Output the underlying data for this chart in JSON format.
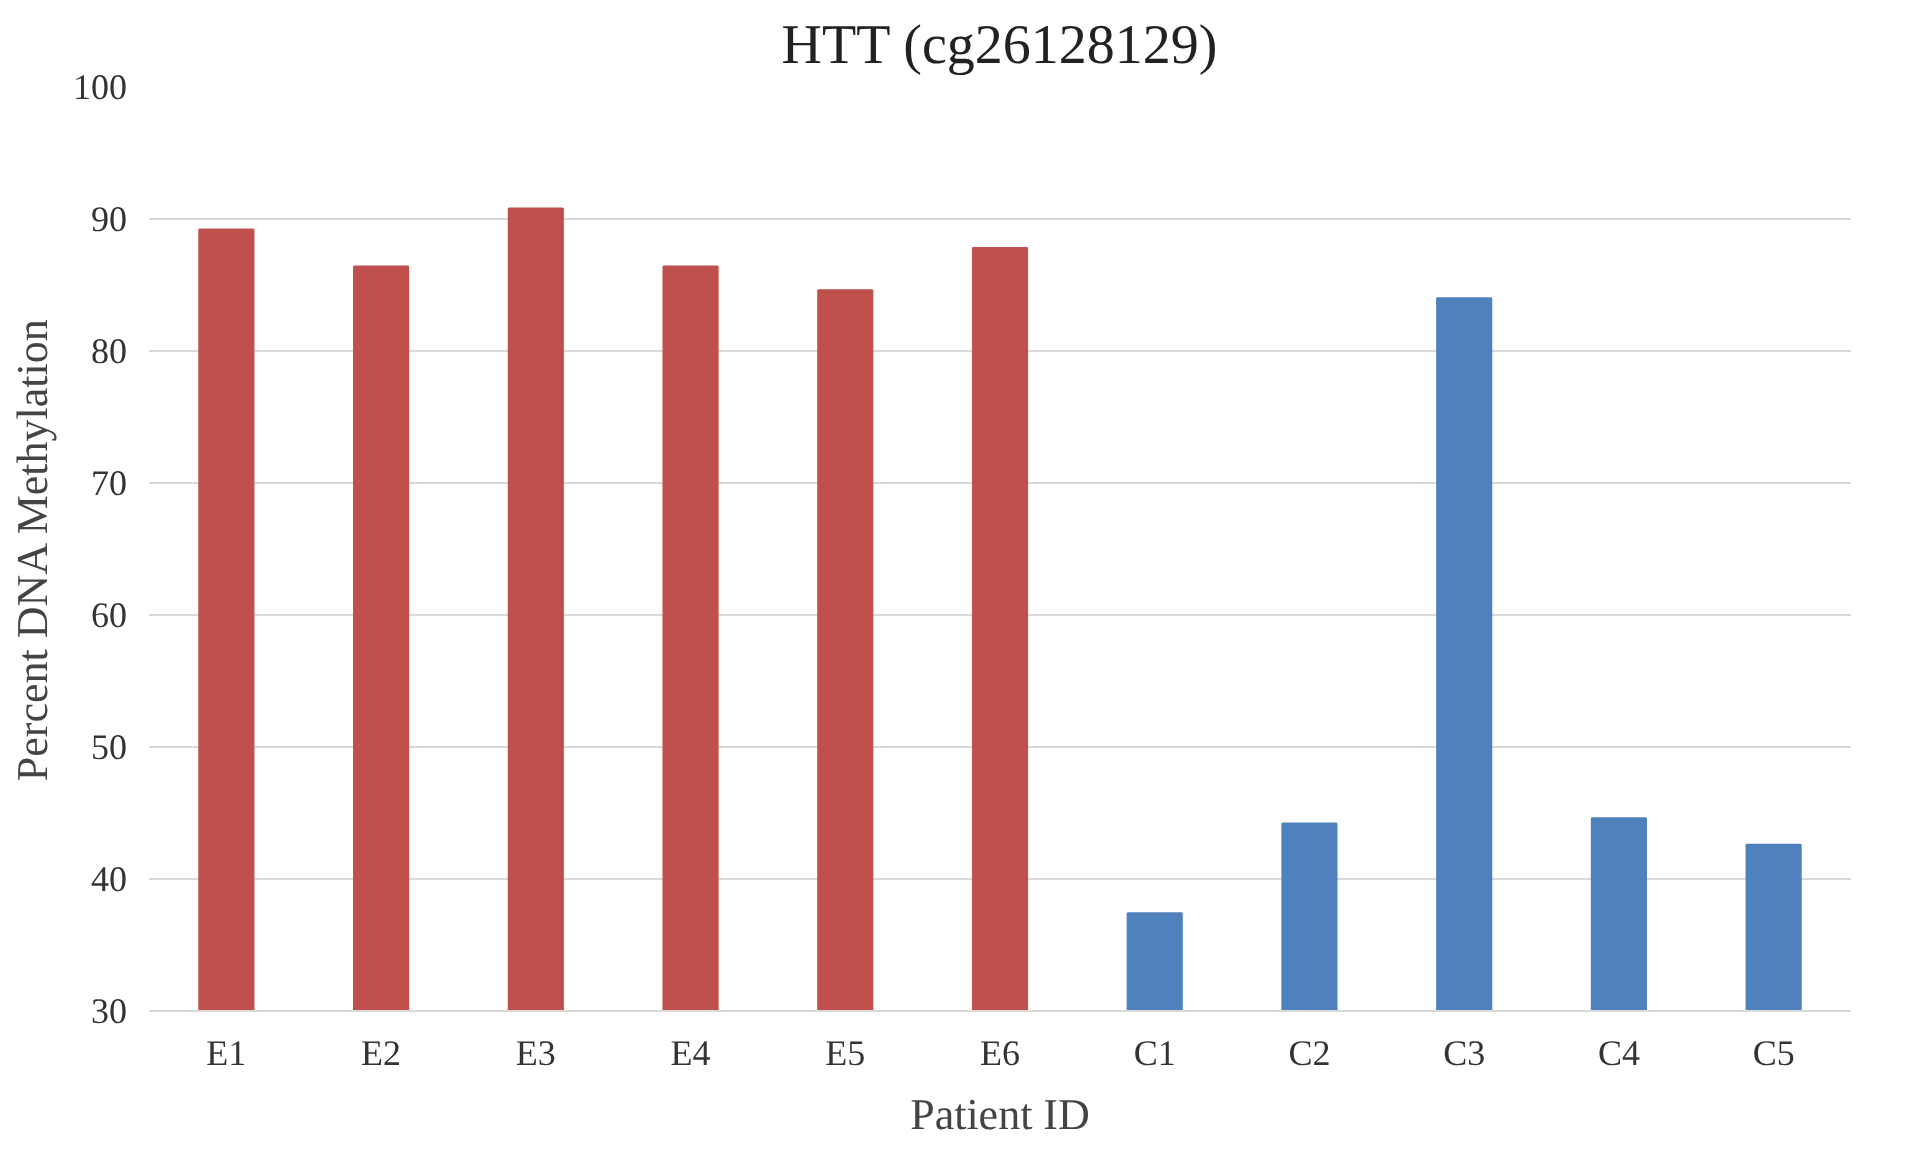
{
  "chart_data": {
    "type": "bar",
    "title": "HTT (cg26128129)",
    "xlabel": "Patient ID",
    "ylabel": "Percent DNA Methylation",
    "categories": [
      "E1",
      "E2",
      "E3",
      "E4",
      "E5",
      "E6",
      "C1",
      "C2",
      "C3",
      "C4",
      "C5"
    ],
    "values": [
      89.2,
      86.4,
      90.8,
      86.4,
      84.6,
      87.8,
      37.4,
      44.2,
      84.0,
      44.6,
      42.6
    ],
    "colors": [
      "#c0504d",
      "#c0504d",
      "#c0504d",
      "#c0504d",
      "#c0504d",
      "#c0504d",
      "#4f81bd",
      "#4f81bd",
      "#4f81bd",
      "#4f81bd",
      "#4f81bd"
    ],
    "ylim": [
      30,
      100
    ],
    "yticks": [
      30,
      40,
      50,
      60,
      70,
      80,
      90,
      100
    ],
    "grid": "y"
  }
}
